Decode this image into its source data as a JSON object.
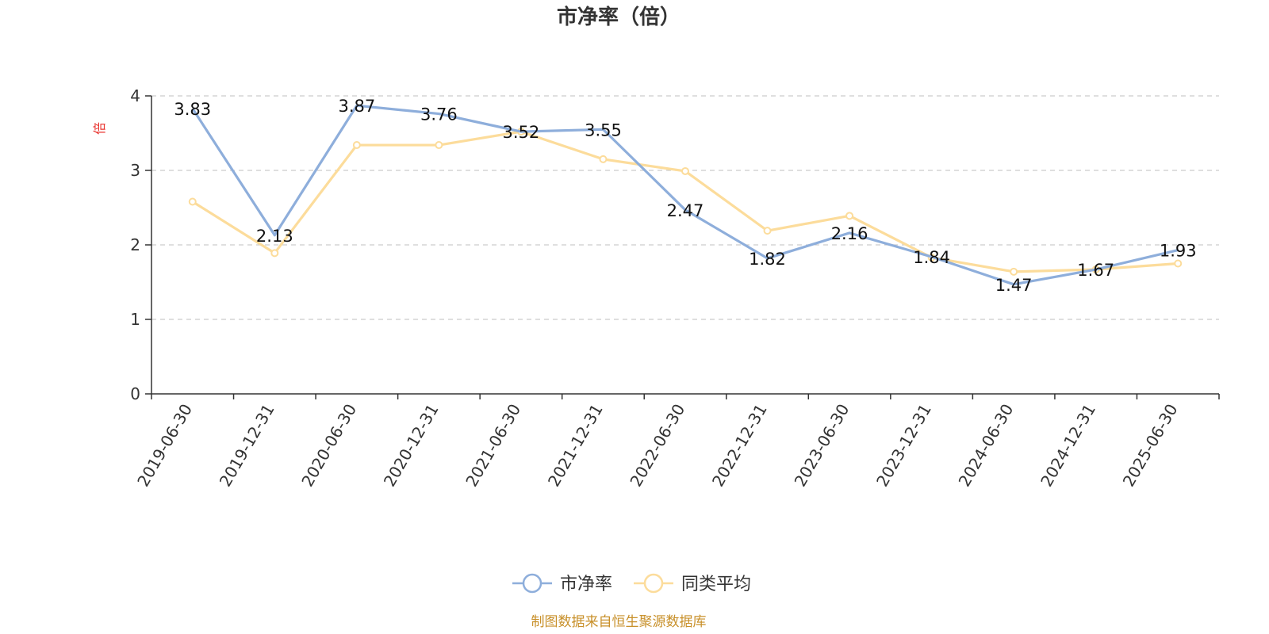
{
  "chart_data": {
    "type": "line",
    "title": "市净率（倍）",
    "ylabel": "倍",
    "ylim": [
      0,
      4
    ],
    "yticks": [
      0,
      1,
      2,
      3,
      4
    ],
    "grid": true,
    "legend_placement": "bottom-center",
    "categories": [
      "2019-06-30",
      "2019-12-31",
      "2020-06-30",
      "2020-12-31",
      "2021-06-30",
      "2021-12-31",
      "2022-06-30",
      "2022-12-31",
      "2023-06-30",
      "2023-12-31",
      "2024-06-30",
      "2024-12-31",
      "2025-06-30"
    ],
    "series": [
      {
        "name": "市净率",
        "color": "#8eaedb",
        "values": [
          3.83,
          2.13,
          3.87,
          3.76,
          3.52,
          3.55,
          2.47,
          1.82,
          2.16,
          1.84,
          1.47,
          1.67,
          1.93
        ],
        "labels": [
          "3.83",
          "2.13",
          "3.87",
          "3.76",
          "3.52",
          "3.55",
          "2.47",
          "1.82",
          "2.16",
          "1.84",
          "1.47",
          "1.67",
          "1.93"
        ]
      },
      {
        "name": "同类平均",
        "color": "#fcdc9b",
        "values": [
          2.58,
          1.89,
          3.34,
          3.34,
          3.52,
          3.15,
          2.99,
          2.19,
          2.39,
          1.83,
          1.64,
          1.67,
          1.75
        ]
      }
    ],
    "source": "制图数据来自恒生聚源数据库"
  }
}
